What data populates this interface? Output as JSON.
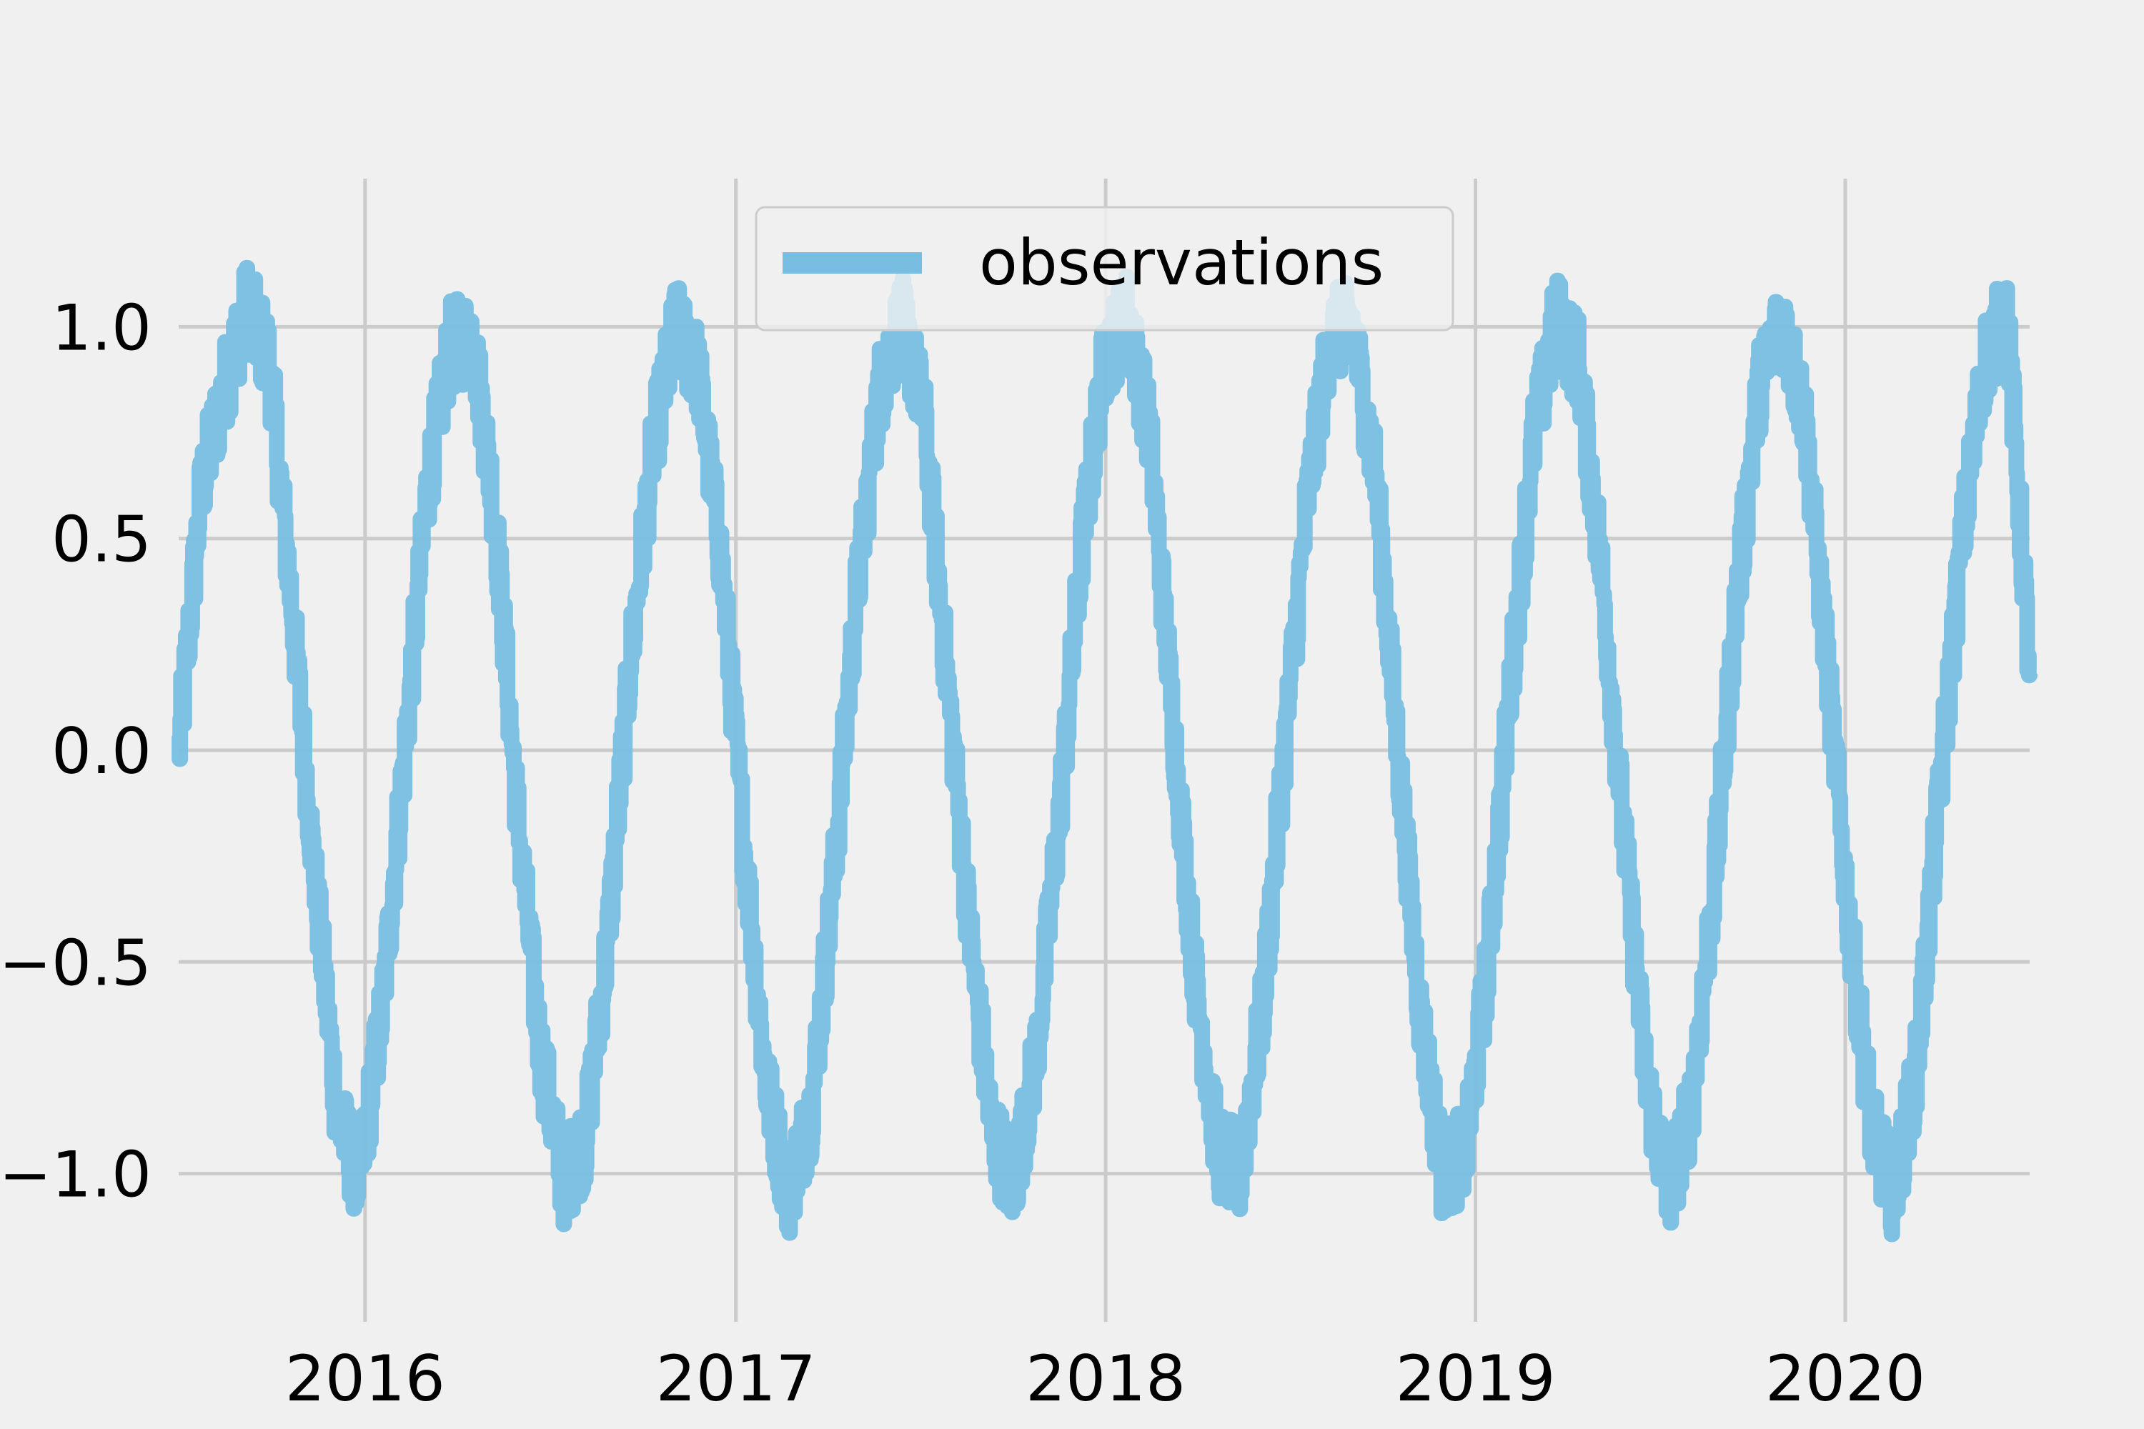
{
  "chart_data": {
    "type": "line",
    "title": "",
    "xlabel": "",
    "ylabel": "",
    "xlim": [
      "2015-07-01",
      "2020-07-01"
    ],
    "ylim": [
      -1.35,
      1.35
    ],
    "grid": true,
    "legend_placement": "top-center",
    "xticks": [
      {
        "value": "2016-01-01",
        "label": "2016"
      },
      {
        "value": "2017-01-01",
        "label": "2017"
      },
      {
        "value": "2018-01-01",
        "label": "2018"
      },
      {
        "value": "2019-01-01",
        "label": "2019"
      },
      {
        "value": "2020-01-01",
        "label": "2020"
      }
    ],
    "yticks": [
      {
        "value": -1.0,
        "label": "−1.0"
      },
      {
        "value": -0.5,
        "label": "−0.5"
      },
      {
        "value": 0.0,
        "label": "0.0"
      },
      {
        "value": 0.5,
        "label": "0.5"
      },
      {
        "value": 1.0,
        "label": "1.0"
      }
    ],
    "series": [
      {
        "name": "observations",
        "color": "#77bee2",
        "x": [
          "2015-07-01",
          "2015-07-23",
          "2015-08-15",
          "2015-09-06",
          "2015-09-28",
          "2015-10-20",
          "2015-11-12",
          "2015-12-04",
          "2015-12-26",
          "2016-01-17",
          "2016-02-09",
          "2016-03-02",
          "2016-03-24",
          "2016-04-16",
          "2016-05-08",
          "2016-05-30",
          "2016-06-21",
          "2016-07-14",
          "2016-08-05",
          "2016-08-27",
          "2016-09-18",
          "2016-10-11",
          "2016-11-02",
          "2016-11-24",
          "2016-12-17",
          "2017-01-08",
          "2017-01-30",
          "2017-02-21",
          "2017-03-16",
          "2017-04-07",
          "2017-04-29",
          "2017-05-22",
          "2017-06-13",
          "2017-07-05",
          "2017-07-27",
          "2017-08-19",
          "2017-09-10",
          "2017-10-02",
          "2017-10-24",
          "2017-11-16",
          "2017-12-08",
          "2017-12-30",
          "2018-01-22",
          "2018-02-13",
          "2018-03-07",
          "2018-03-29",
          "2018-04-21",
          "2018-05-13",
          "2018-06-04",
          "2018-06-26",
          "2018-07-19",
          "2018-08-10",
          "2018-09-01",
          "2018-09-24",
          "2018-10-16",
          "2018-11-07",
          "2018-11-29",
          "2018-12-22",
          "2019-01-13",
          "2019-02-04",
          "2019-02-26",
          "2019-03-21",
          "2019-04-12",
          "2019-05-04",
          "2019-05-27",
          "2019-06-18",
          "2019-07-10",
          "2019-08-01",
          "2019-08-24",
          "2019-09-15",
          "2019-10-07",
          "2019-10-30",
          "2019-11-21",
          "2019-12-13",
          "2020-01-04",
          "2020-01-27",
          "2020-02-18",
          "2020-03-11",
          "2020-04-02",
          "2020-04-25",
          "2020-05-17",
          "2020-06-08",
          "2020-07-01"
        ],
        "y": [
          0.0,
          0.62,
          0.86,
          1.05,
          0.92,
          0.35,
          -0.3,
          -0.86,
          -1.02,
          -0.62,
          0.0,
          0.62,
          0.95,
          0.98,
          0.55,
          -0.15,
          -0.7,
          -1.02,
          -0.92,
          -0.45,
          0.2,
          0.72,
          1.0,
          0.9,
          0.45,
          -0.2,
          -0.78,
          -1.05,
          -0.85,
          -0.3,
          0.35,
          0.85,
          1.02,
          0.8,
          0.2,
          -0.42,
          -0.9,
          -1.03,
          -0.72,
          -0.15,
          0.48,
          0.92,
          1.03,
          0.75,
          0.1,
          -0.52,
          -0.95,
          -1.0,
          -0.62,
          0.0,
          0.6,
          0.98,
          1.0,
          0.65,
          0.0,
          -0.62,
          -1.0,
          -0.95,
          -0.5,
          0.15,
          0.72,
          1.02,
          0.92,
          0.45,
          -0.2,
          -0.78,
          -1.05,
          -0.85,
          -0.32,
          0.35,
          0.85,
          1.02,
          0.8,
          0.22,
          -0.4,
          -0.9,
          -1.05,
          -0.75,
          -0.12,
          0.5,
          0.92,
          1.03,
          0.18
        ],
        "noise_band": 0.22
      }
    ]
  }
}
